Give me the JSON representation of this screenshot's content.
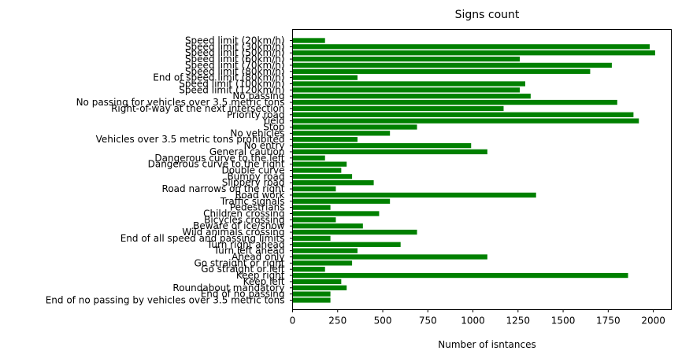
{
  "chart_data": {
    "type": "bar",
    "orientation": "horizontal",
    "title": "Signs count",
    "xlabel": "Number of isntances",
    "ylabel": "",
    "xlim": [
      0,
      2100
    ],
    "xticks": [
      0,
      250,
      500,
      750,
      1000,
      1250,
      1500,
      1750,
      2000
    ],
    "grid": false,
    "bar_color": "#008000",
    "categories": [
      "Speed limit (20km/h)",
      "Speed limit (30km/h)",
      "Speed limit (50km/h)",
      "Speed limit (60km/h)",
      "Speed limit (70km/h)",
      "Speed limit (80km/h)",
      "End of speed limit (80km/h)",
      "Speed limit (100km/h)",
      "Speed limit (120km/h)",
      "No passing",
      "No passing for vehicles over 3.5 metric tons",
      "Right-of-way at the next intersection",
      "Priority road",
      "Yield",
      "Stop",
      "No vehicles",
      "Vehicles over 3.5 metric tons prohibited",
      "No entry",
      "General caution",
      "Dangerous curve to the left",
      "Dangerous curve to the right",
      "Double curve",
      "Bumpy road",
      "Slippery road",
      "Road narrows on the right",
      "Road work",
      "Traffic signals",
      "Pedestrians",
      "Children crossing",
      "Bicycles crossing",
      "Beware of ice/snow",
      "Wild animals crossing",
      "End of all speed and passing limits",
      "Turn right ahead",
      "Turn left ahead",
      "Ahead only",
      "Go straight or right",
      "Go straight or left",
      "Keep right",
      "Keep left",
      "Roundabout mandatory",
      "End of no passing",
      "End of no passing by vehicles over 3.5 metric tons"
    ],
    "values": [
      180,
      1980,
      2010,
      1260,
      1770,
      1650,
      360,
      1290,
      1260,
      1320,
      1800,
      1170,
      1890,
      1920,
      690,
      540,
      360,
      990,
      1080,
      180,
      300,
      270,
      330,
      450,
      240,
      1350,
      540,
      210,
      480,
      240,
      390,
      690,
      210,
      599,
      360,
      1080,
      330,
      180,
      1860,
      270,
      300,
      210,
      210
    ]
  }
}
